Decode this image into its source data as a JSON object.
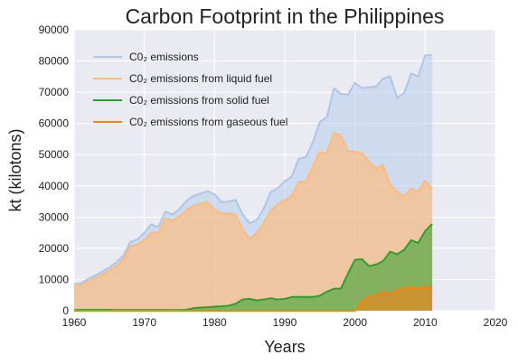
{
  "chart_data": {
    "type": "area",
    "title": "Carbon Footprint in the Philippines",
    "xlabel": "Years",
    "ylabel": "kt (kilotons)",
    "xlim": [
      1960,
      2020
    ],
    "ylim": [
      0,
      90000
    ],
    "xticks": [
      "1960",
      "1970",
      "1980",
      "1990",
      "2000",
      "2010",
      "2020"
    ],
    "yticks": [
      "0",
      "10000",
      "20000",
      "30000",
      "40000",
      "50000",
      "60000",
      "70000",
      "80000",
      "90000"
    ],
    "grid": true,
    "legend_position": "top-left",
    "x": [
      1960,
      1961,
      1962,
      1963,
      1964,
      1965,
      1966,
      1967,
      1968,
      1969,
      1970,
      1971,
      1972,
      1973,
      1974,
      1975,
      1976,
      1977,
      1978,
      1979,
      1980,
      1981,
      1982,
      1983,
      1984,
      1985,
      1986,
      1987,
      1988,
      1989,
      1990,
      1991,
      1992,
      1993,
      1994,
      1995,
      1996,
      1997,
      1998,
      1999,
      2000,
      2001,
      2002,
      2003,
      2004,
      2005,
      2006,
      2007,
      2008,
      2009,
      2010,
      2011
    ],
    "series": [
      {
        "name": "C0₂ emissions",
        "color": "#aec7e8",
        "fill_opacity": 0.45,
        "values": [
          8500,
          8800,
          10200,
          11300,
          12600,
          13800,
          15500,
          17500,
          22000,
          22800,
          25000,
          27700,
          26800,
          31800,
          30800,
          32500,
          35200,
          36800,
          37500,
          38300,
          37300,
          34800,
          35000,
          35500,
          30800,
          28000,
          29000,
          32700,
          38000,
          39200,
          41500,
          43000,
          48700,
          49200,
          54000,
          60500,
          62000,
          71300,
          69500,
          69200,
          73000,
          71300,
          71600,
          71800,
          74400,
          75100,
          68200,
          69700,
          76000,
          75100,
          81800,
          82000
        ]
      },
      {
        "name": "C0₂ emissions from liquid fuel",
        "color": "#ffbb78",
        "fill_opacity": 0.65,
        "values": [
          7800,
          8200,
          9400,
          10500,
          11600,
          13000,
          14300,
          16500,
          20700,
          21100,
          22700,
          25100,
          24900,
          29600,
          28900,
          30200,
          32300,
          33700,
          34300,
          34900,
          32400,
          31100,
          31200,
          30700,
          26200,
          22900,
          24800,
          28100,
          32000,
          34100,
          35400,
          36800,
          41200,
          41300,
          46300,
          50900,
          50400,
          57000,
          56100,
          51200,
          51000,
          50400,
          47800,
          45600,
          46600,
          40500,
          38100,
          36600,
          39100,
          38200,
          41700,
          39000
        ]
      },
      {
        "name": "C0₂ emissions from solid fuel",
        "color": "#2ca02c",
        "fill_opacity": 0.55,
        "values": [
          200,
          300,
          300,
          300,
          300,
          300,
          200,
          200,
          200,
          200,
          200,
          200,
          200,
          200,
          200,
          200,
          300,
          800,
          1000,
          1100,
          1300,
          1400,
          1600,
          2200,
          3600,
          3800,
          3300,
          3600,
          4000,
          3600,
          3800,
          4400,
          4400,
          4400,
          4400,
          4800,
          6100,
          7000,
          7100,
          11900,
          16300,
          16500,
          14300,
          14800,
          15900,
          18900,
          18100,
          19500,
          22600,
          21700,
          25500,
          27800
        ]
      },
      {
        "name": "C0₂ emissions from gaseous fuel",
        "color": "#ff7f0e",
        "fill_opacity": 0.55,
        "values": [
          0,
          0,
          0,
          0,
          0,
          0,
          0,
          0,
          0,
          0,
          0,
          0,
          0,
          0,
          0,
          0,
          0,
          0,
          0,
          0,
          0,
          0,
          0,
          0,
          0,
          0,
          0,
          0,
          0,
          0,
          0,
          0,
          0,
          0,
          0,
          0,
          0,
          0,
          0,
          0,
          0,
          3000,
          4500,
          5000,
          6000,
          5500,
          6500,
          7200,
          7600,
          7400,
          7700,
          7500
        ]
      }
    ]
  }
}
